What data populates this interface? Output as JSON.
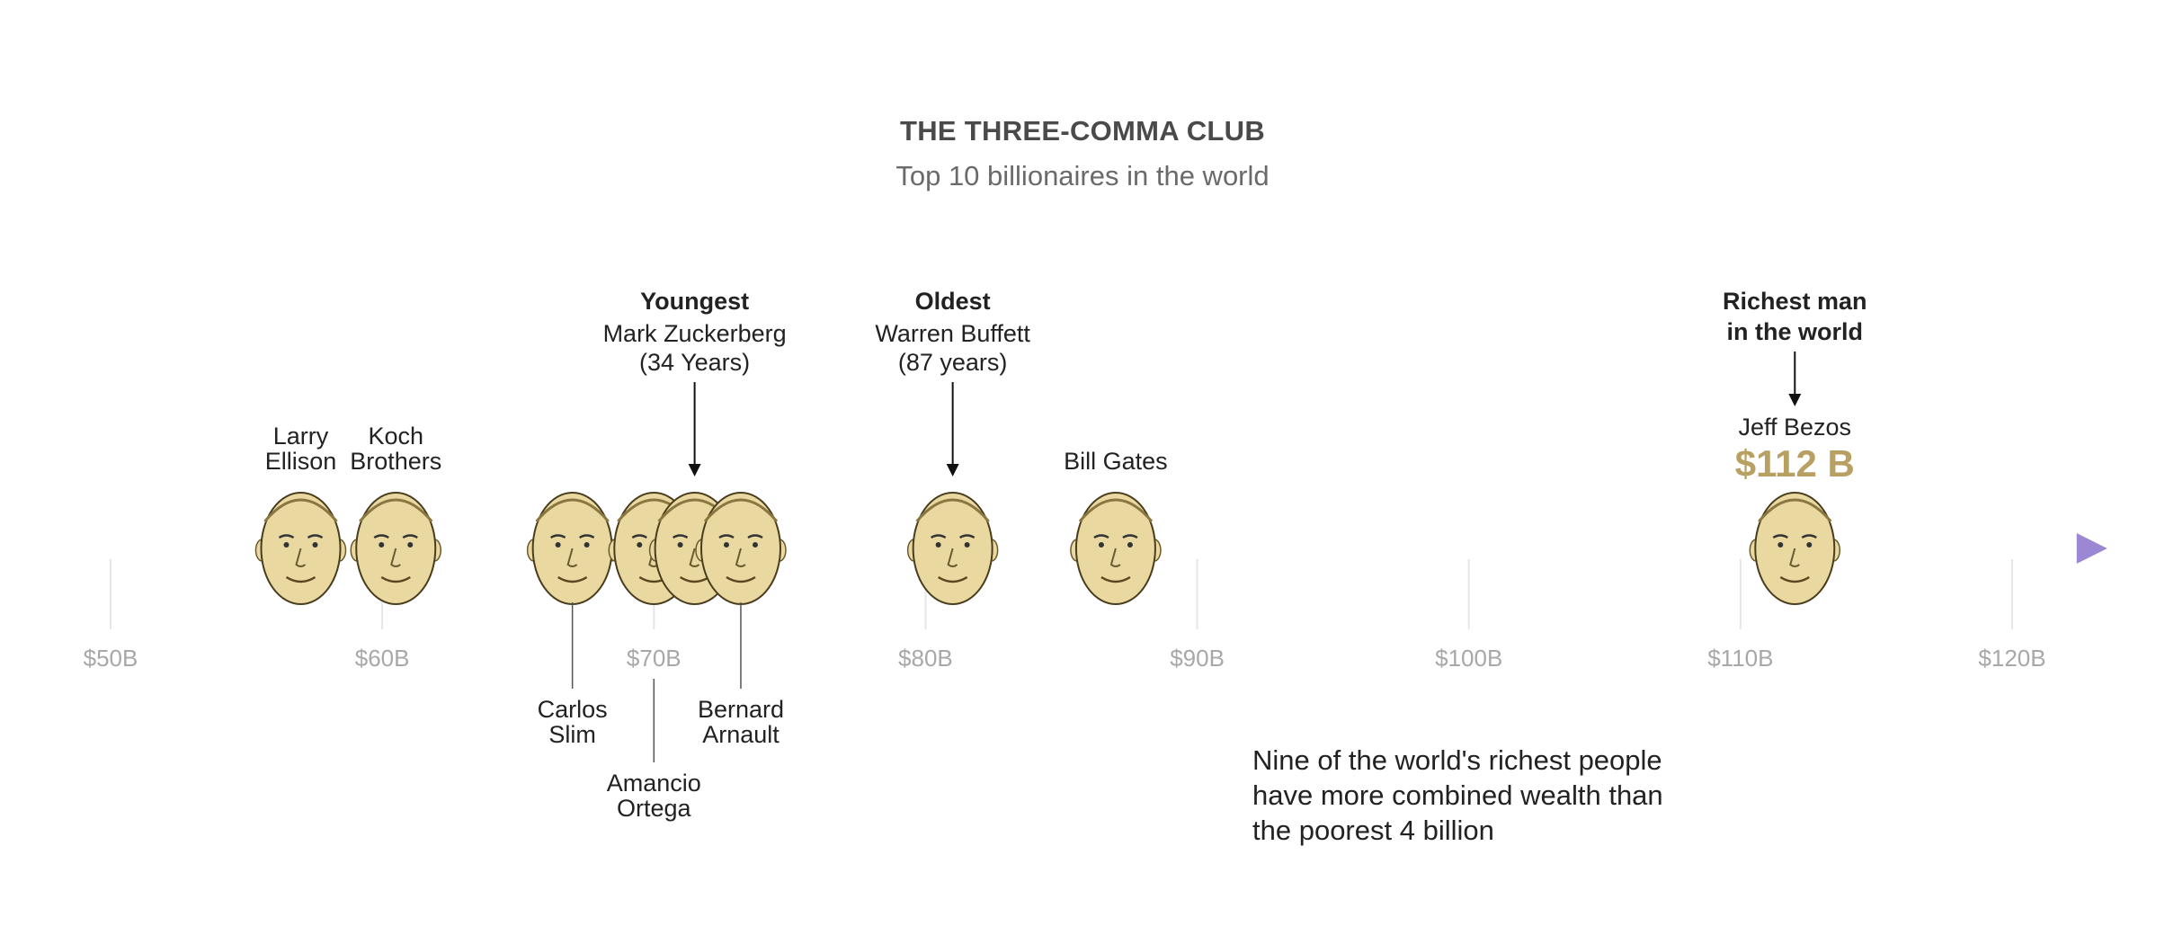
{
  "header": {
    "title": "THE THREE-COMMA CLUB",
    "subtitle": "Top 10 billionaires in the world"
  },
  "chart_data": {
    "type": "scatter",
    "title": "THE THREE-COMMA CLUB",
    "subtitle": "Top 10 billionaires in the world",
    "xlabel": "",
    "ylabel": "",
    "xlim": [
      49,
      123.5
    ],
    "x_ticks": [
      50,
      60,
      70,
      80,
      90,
      100,
      110,
      120
    ],
    "tick_labels": [
      "$50B",
      "$60B",
      "$70B",
      "$80B",
      "$90B",
      "$100B",
      "$110B",
      "$120B"
    ],
    "points": [
      {
        "name": "Larry Ellison",
        "lines": [
          "Larry",
          "Ellison"
        ],
        "x": 57.0,
        "label_pos": "above"
      },
      {
        "name": "Koch Brothers",
        "lines": [
          "Koch",
          "Brothers"
        ],
        "x": 60.5,
        "label_pos": "above"
      },
      {
        "name": "Carlos Slim",
        "lines": [
          "Carlos",
          "Slim"
        ],
        "x": 67.0,
        "label_pos": "below"
      },
      {
        "name": "Amancio Ortega",
        "lines": [
          "Amancio",
          "Ortega"
        ],
        "x": 70.0,
        "label_pos": "below-far"
      },
      {
        "name": "Mark Zuckerberg",
        "lines": [
          "Mark Zuckerberg"
        ],
        "x": 71.5,
        "label_pos": "callout"
      },
      {
        "name": "Bernard Arnault",
        "lines": [
          "Bernard",
          "Arnault"
        ],
        "x": 73.2,
        "label_pos": "below"
      },
      {
        "name": "Warren Buffett",
        "lines": [
          "Warren Buffett"
        ],
        "x": 81.0,
        "label_pos": "callout"
      },
      {
        "name": "Bill Gates",
        "lines": [
          "Bill Gates"
        ],
        "x": 87.0,
        "label_pos": "above"
      },
      {
        "name": "Jeff Bezos",
        "lines": [
          "Jeff Bezos"
        ],
        "x": 112.0,
        "label_pos": "callout",
        "value_label": "$112 B"
      }
    ],
    "callouts": [
      {
        "person": "Mark Zuckerberg",
        "heading": "Youngest",
        "lines": [
          "Mark Zuckerberg",
          "(34 Years)"
        ]
      },
      {
        "person": "Warren Buffett",
        "heading": "Oldest",
        "lines": [
          "Warren Buffett",
          "(87 years)"
        ]
      },
      {
        "person": "Jeff Bezos",
        "heading_lines": [
          "Richest man",
          "in the world"
        ]
      }
    ],
    "annotation": [
      "Nine of the world's richest people",
      "have more combined wealth than",
      "the poorest 4 billion"
    ],
    "colors": {
      "axis": "#9b87d4",
      "highlight": "#b8a062",
      "face": "#e9d9a0",
      "tick": "#a8a8a8"
    }
  }
}
